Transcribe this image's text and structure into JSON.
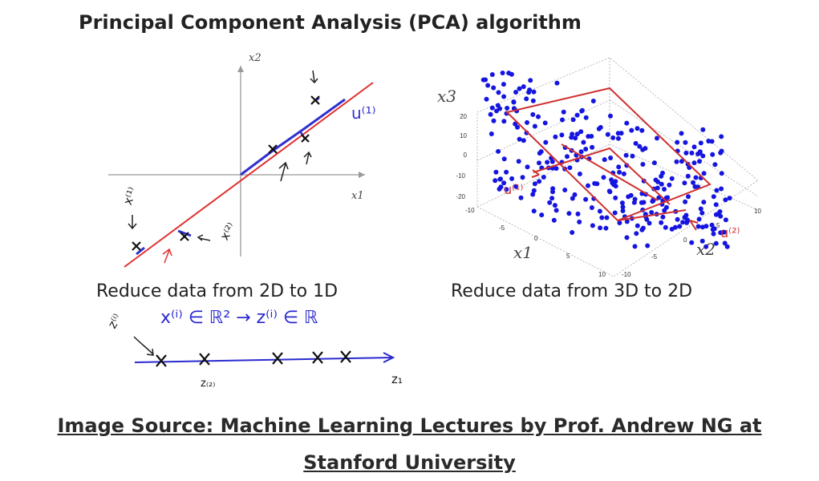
{
  "title": "Principal Component Analysis (PCA) algorithm",
  "left_panel": {
    "axis_x2": "x2",
    "axis_x1": "x1",
    "caption": "Reduce data from 2D to 1D",
    "annotations": {
      "u1": "u⁽¹⁾",
      "x1": "x⁽¹⁾",
      "x2": "x⁽²⁾",
      "mapping": "x⁽ⁱ⁾ ∈ ℝ²  →  z⁽ⁱ⁾ ∈ ℝ",
      "zi": "z⁽ⁱ⁾",
      "z1": "z₁",
      "z2": "z₍₂₎"
    }
  },
  "right_panel": {
    "axis_x3": "x3",
    "axis_x1": "x1",
    "axis_x2": "x2",
    "z_ticks": [
      "20",
      "10",
      "0",
      "-10",
      "-20"
    ],
    "x1_ticks": [
      "-10",
      "-5",
      "0",
      "5",
      "10"
    ],
    "x2_ticks": [
      "-10",
      "-5",
      "0",
      "5",
      "10"
    ],
    "annotations": {
      "u1": "u⁽¹⁾",
      "u2": "u⁽²⁾"
    },
    "caption": "Reduce data from 3D to 2D"
  },
  "source": "Image Source: Machine Learning Lectures by Prof. Andrew NG at Stanford University"
}
